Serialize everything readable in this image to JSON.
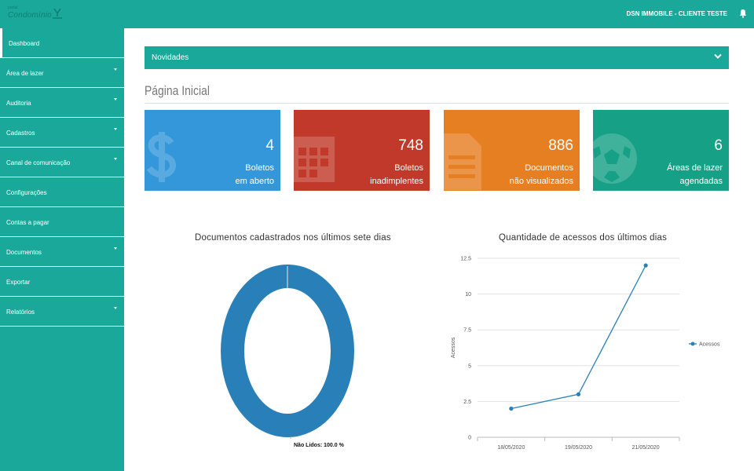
{
  "header": {
    "logo_small": "portal",
    "logo_text": "Condomínio",
    "user": "DSN IMMOBILE - CLIENTE TESTE"
  },
  "sidebar": {
    "items": [
      {
        "label": "Dashboard",
        "has_submenu": false,
        "active": true
      },
      {
        "label": "Área de lazer",
        "has_submenu": true
      },
      {
        "label": "Auditoria",
        "has_submenu": true
      },
      {
        "label": "Cadastros",
        "has_submenu": true
      },
      {
        "label": "Canal de comunicação",
        "has_submenu": true
      },
      {
        "label": "Configurações",
        "has_submenu": false
      },
      {
        "label": "Contas a pagar",
        "has_submenu": false
      },
      {
        "label": "Documentos",
        "has_submenu": true
      },
      {
        "label": "Exportar",
        "has_submenu": false
      },
      {
        "label": "Relatórios",
        "has_submenu": true
      }
    ]
  },
  "novidades": {
    "label": "Novidades"
  },
  "page": {
    "title": "Página Inicial"
  },
  "cards": [
    {
      "value": "4",
      "line1": "Boletos",
      "line2": "em aberto",
      "color": "#3397da",
      "icon": "dollar-icon"
    },
    {
      "value": "748",
      "line1": "Boletos",
      "line2": "inadimplentes",
      "color": "#c0392b",
      "icon": "calendar-icon"
    },
    {
      "value": "886",
      "line1": "Documentos",
      "line2": "não visualizados",
      "color": "#e67e22",
      "icon": "document-icon"
    },
    {
      "value": "6",
      "line1": "Áreas de lazer",
      "line2": "agendadas",
      "color": "#16a085",
      "icon": "soccer-ball-icon"
    }
  ],
  "colors": {
    "brand": "#1aa89b",
    "chart_blue": "#2980b9"
  },
  "chart_data": [
    {
      "type": "pie",
      "title": "Documentos cadastrados nos últimos sete dias",
      "categories": [
        "Não Lidos"
      ],
      "values": [
        100.0
      ],
      "label": "Não Lidos: 100.0 %"
    },
    {
      "type": "line",
      "title": "Quantidade de acessos dos últimos dias",
      "ylabel": "Acessos",
      "x": [
        "18/05/2020",
        "19/05/2020",
        "21/05/2020"
      ],
      "series": [
        {
          "name": "Acessos",
          "values": [
            2,
            3,
            12
          ]
        }
      ],
      "ylim": [
        0,
        12.5
      ],
      "yticks": [
        "0",
        "2.5",
        "5",
        "7.5",
        "10",
        "12.5"
      ],
      "grid": true,
      "legend": "right"
    }
  ]
}
